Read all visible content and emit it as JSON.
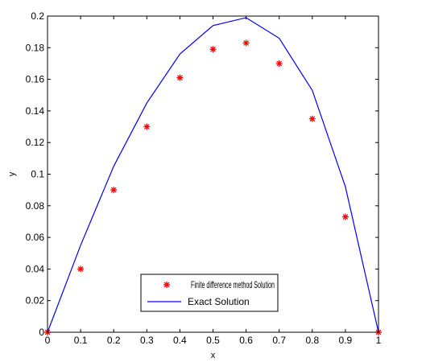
{
  "chart_data": {
    "type": "line",
    "xlabel": "x",
    "ylabel": "y",
    "xlim": [
      0,
      1
    ],
    "ylim": [
      0,
      0.2
    ],
    "x_ticks": [
      0,
      0.1,
      0.2,
      0.3,
      0.4,
      0.5,
      0.6,
      0.7,
      0.8,
      0.9,
      1
    ],
    "x_tick_labels": [
      "0",
      "0.1",
      "0.2",
      "0.3",
      "0.4",
      "0.5",
      "0.6",
      "0.7",
      "0.8",
      "0.9",
      "1"
    ],
    "y_ticks": [
      0,
      0.02,
      0.04,
      0.06,
      0.08,
      0.1,
      0.12,
      0.14,
      0.16,
      0.18,
      0.2
    ],
    "y_tick_labels": [
      "0",
      "0.02",
      "0.04",
      "0.06",
      "0.08",
      "0.1",
      "0.12",
      "0.14",
      "0.16",
      "0.18",
      "0.2"
    ],
    "grid": false,
    "legend_position": "bottom-center",
    "series": [
      {
        "name": "Finite difference method Solution",
        "style": "scatter",
        "marker": "asterisk",
        "color": "#ff0000",
        "x": [
          0,
          0.1,
          0.2,
          0.3,
          0.4,
          0.5,
          0.6,
          0.7,
          0.8,
          0.9,
          1
        ],
        "y": [
          0,
          0.04,
          0.09,
          0.13,
          0.161,
          0.179,
          0.183,
          0.17,
          0.135,
          0.073,
          0
        ]
      },
      {
        "name": "Exact Solution",
        "style": "line",
        "color": "#0000ff",
        "x": [
          0,
          0.1,
          0.2,
          0.3,
          0.4,
          0.5,
          0.6,
          0.7,
          0.8,
          0.9,
          1
        ],
        "y": [
          0,
          0.055,
          0.105,
          0.145,
          0.176,
          0.194,
          0.199,
          0.186,
          0.153,
          0.092,
          0
        ]
      }
    ]
  }
}
